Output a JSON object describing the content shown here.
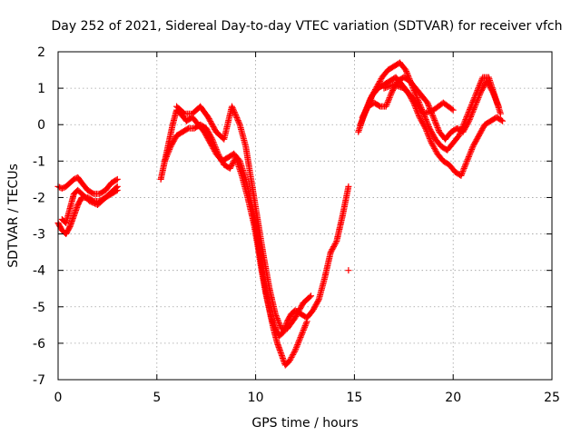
{
  "chart_data": {
    "type": "scatter",
    "title": "Day 252 of 2021, Sidereal Day-to-day VTEC variation (SDTVAR) for receiver vfch",
    "xlabel": "GPS time / hours",
    "ylabel": "SDTVAR / TECUs",
    "xlim": [
      0,
      25
    ],
    "ylim": [
      -7,
      2
    ],
    "xticks": [
      0,
      5,
      10,
      15,
      20,
      25
    ],
    "yticks": [
      -7,
      -6,
      -5,
      -4,
      -3,
      -2,
      -1,
      0,
      1,
      2
    ],
    "grid": true,
    "marker": "+",
    "color": "#ff0000",
    "series": [
      {
        "x": [
          0,
          0.2,
          0.4,
          0.6,
          0.8,
          1.0,
          1.2,
          1.5,
          1.8,
          2.1,
          2.4,
          2.7,
          3.0
        ],
        "y": [
          -1.7,
          -1.75,
          -1.7,
          -1.6,
          -1.5,
          -1.45,
          -1.6,
          -1.8,
          -1.9,
          -1.9,
          -1.8,
          -1.6,
          -1.5
        ]
      },
      {
        "x": [
          0,
          0.2,
          0.4,
          0.6,
          0.8,
          1.0,
          1.2,
          1.5,
          1.8,
          2.1,
          2.4,
          2.7,
          3.0
        ],
        "y": [
          -2.7,
          -2.9,
          -3.0,
          -2.8,
          -2.5,
          -2.2,
          -2.0,
          -2.0,
          -2.1,
          -2.1,
          -2.0,
          -1.9,
          -1.8
        ]
      },
      {
        "x": [
          0.2,
          0.4,
          0.6,
          0.8,
          1.0,
          1.3,
          1.6,
          2.0,
          2.4,
          2.8,
          3.0
        ],
        "y": [
          -2.6,
          -2.7,
          -2.3,
          -1.9,
          -1.8,
          -1.95,
          -2.1,
          -2.2,
          -2.0,
          -1.8,
          -1.7
        ]
      },
      {
        "x": [
          5.2,
          5.4,
          5.6,
          5.8,
          6.0,
          6.2,
          6.5,
          6.8,
          7.1,
          7.4,
          7.7,
          8.0,
          8.3,
          8.6,
          8.9,
          9.2,
          9.5,
          9.8,
          10.0,
          10.2,
          10.4,
          10.6,
          10.8,
          11.0,
          11.2,
          11.4,
          11.6,
          11.8,
          12.0,
          12.3,
          12.6,
          12.9,
          13.2,
          13.5,
          13.8,
          14.1,
          14.4,
          14.7
        ],
        "y": [
          -1.5,
          -1.0,
          -0.5,
          0.0,
          0.4,
          0.3,
          0.1,
          0.2,
          0.0,
          -0.2,
          -0.5,
          -0.8,
          -1.0,
          -0.9,
          -0.8,
          -1.0,
          -1.5,
          -2.2,
          -2.8,
          -3.5,
          -4.2,
          -4.8,
          -5.3,
          -5.6,
          -5.8,
          -5.7,
          -5.4,
          -5.2,
          -5.1,
          -5.2,
          -5.3,
          -5.1,
          -4.8,
          -4.2,
          -3.5,
          -3.2,
          -2.5,
          -1.7
        ]
      },
      {
        "x": [
          5.4,
          5.7,
          6.0,
          6.3,
          6.6,
          6.9,
          7.2,
          7.5,
          7.8,
          8.1,
          8.4,
          8.7,
          9.0,
          9.3,
          9.6,
          9.9,
          10.1,
          10.3,
          10.5,
          10.7,
          10.9,
          11.1,
          11.3,
          11.5,
          11.7,
          12.0,
          12.3,
          12.6
        ],
        "y": [
          -1.0,
          -0.6,
          -0.3,
          -0.2,
          -0.1,
          -0.1,
          0.0,
          -0.1,
          -0.4,
          -0.8,
          -1.1,
          -1.2,
          -0.9,
          -1.4,
          -2.0,
          -2.7,
          -3.3,
          -4.0,
          -4.6,
          -5.1,
          -5.6,
          -6.0,
          -6.3,
          -6.6,
          -6.5,
          -6.2,
          -5.8,
          -5.4
        ]
      },
      {
        "x": [
          6.0,
          6.4,
          6.8,
          7.2,
          7.6,
          8.0,
          8.4,
          8.8,
          9.2,
          9.5,
          9.8,
          10.1,
          10.4,
          10.7,
          11.0,
          11.3,
          11.6,
          12.0,
          12.4,
          12.8
        ],
        "y": [
          0.5,
          0.3,
          0.3,
          0.5,
          0.2,
          -0.2,
          -0.4,
          0.5,
          0.0,
          -0.6,
          -1.6,
          -2.6,
          -3.6,
          -4.5,
          -5.2,
          -5.6,
          -5.6,
          -5.3,
          -4.9,
          -4.7
        ]
      },
      {
        "x": [
          14.7
        ],
        "y": [
          -4.0
        ]
      },
      {
        "x": [
          15.2,
          15.5,
          15.8,
          16.1,
          16.4,
          16.7,
          17.0,
          17.3,
          17.6,
          17.9,
          18.2,
          18.5,
          18.8,
          19.1,
          19.4,
          19.7,
          20.0,
          20.3,
          20.6,
          20.9,
          21.2,
          21.5,
          21.8,
          22.1,
          22.4
        ],
        "y": [
          -0.2,
          0.3,
          0.7,
          1.0,
          1.3,
          1.5,
          1.6,
          1.7,
          1.5,
          1.1,
          0.7,
          0.3,
          -0.1,
          -0.4,
          -0.6,
          -0.7,
          -0.5,
          -0.3,
          0.1,
          0.5,
          0.9,
          1.3,
          1.3,
          0.8,
          0.3
        ]
      },
      {
        "x": [
          15.3,
          15.6,
          15.9,
          16.2,
          16.5,
          16.8,
          17.1,
          17.4,
          17.7,
          18.0,
          18.3,
          18.6,
          18.9,
          19.2,
          19.5,
          19.8,
          20.1,
          20.4,
          20.7,
          21.0,
          21.3,
          21.6,
          21.9,
          22.2,
          22.5
        ],
        "y": [
          0.0,
          0.4,
          0.8,
          1.0,
          1.1,
          1.2,
          1.3,
          1.1,
          0.9,
          0.6,
          0.2,
          -0.1,
          -0.5,
          -0.8,
          -1.0,
          -1.1,
          -1.3,
          -1.4,
          -1.0,
          -0.6,
          -0.3,
          0.0,
          0.1,
          0.2,
          0.1
        ]
      },
      {
        "x": [
          15.4,
          15.7,
          16.0,
          16.3,
          16.6,
          16.9,
          17.2,
          17.5,
          17.8,
          18.1,
          18.4,
          18.7,
          19.0,
          19.3,
          19.6,
          19.9,
          20.2,
          20.5,
          20.8,
          21.1,
          21.4,
          21.7,
          22.0,
          22.3
        ],
        "y": [
          0.2,
          0.5,
          0.6,
          0.5,
          0.5,
          0.9,
          1.2,
          1.3,
          1.2,
          1.0,
          0.8,
          0.6,
          0.2,
          -0.2,
          -0.4,
          -0.2,
          -0.1,
          -0.2,
          0.1,
          0.5,
          0.9,
          1.2,
          0.9,
          0.5
        ]
      },
      {
        "x": [
          16.5,
          17.0,
          17.5,
          18.0,
          18.5,
          19.0,
          19.5,
          20.0
        ],
        "y": [
          1.0,
          1.1,
          1.0,
          0.7,
          0.3,
          0.4,
          0.6,
          0.4
        ]
      }
    ]
  }
}
